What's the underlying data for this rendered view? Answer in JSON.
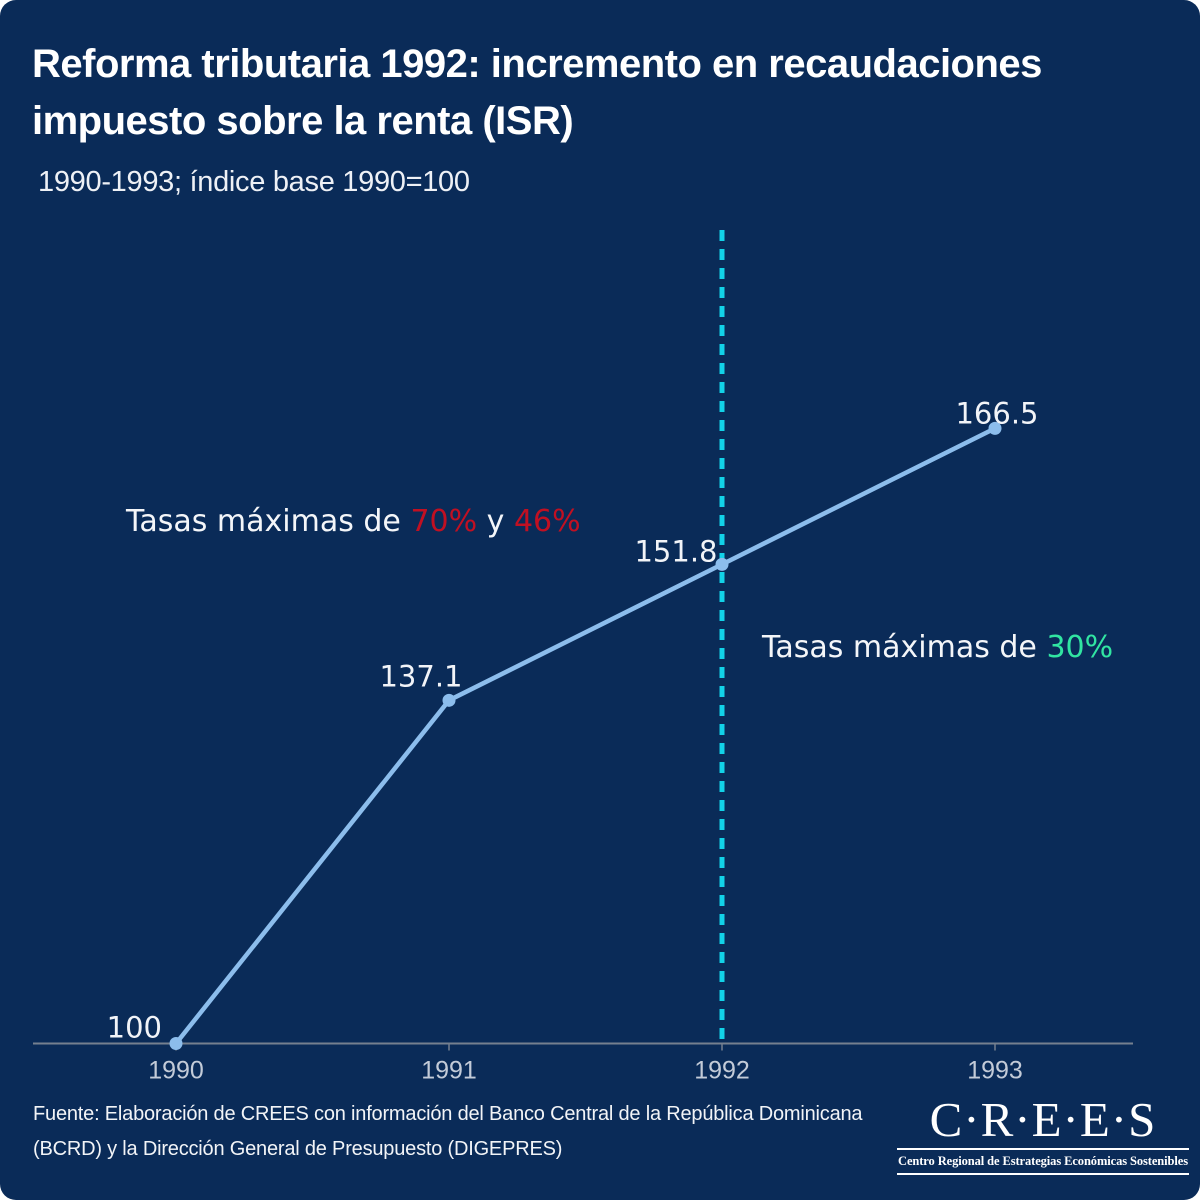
{
  "title": {
    "line1": "Reforma tributaria 1992: incremento en recaudaciones",
    "line2": "impuesto sobre la renta (ISR)"
  },
  "subtitle": "1990-1993; índice base 1990=100",
  "chart_data": {
    "type": "line",
    "x": [
      1990,
      1991,
      1992,
      1993
    ],
    "values": [
      100,
      137.1,
      151.8,
      166.5
    ],
    "point_labels": [
      "100",
      "137.1",
      "151.8",
      "166.5"
    ],
    "x_tick_labels": [
      "1990",
      "1991",
      "1992",
      "1993"
    ],
    "title": "Reforma tributaria 1992: incremento en recaudaciones impuesto sobre la renta (ISR)",
    "subtitle": "1990-1993; índice base 1990=100",
    "xlabel": "",
    "ylabel": "",
    "ylim": [
      95,
      175
    ],
    "grid": false,
    "legend": false,
    "reference_line": {
      "x": 1992,
      "style": "dashed",
      "orientation": "vertical"
    },
    "annotations": [
      {
        "side": "left-of-reference",
        "parts": [
          {
            "text": "Tasas máximas de ",
            "color": "#f4f6f9"
          },
          {
            "text": "70%",
            "color": "#c11022"
          },
          {
            "text": " y ",
            "color": "#f4f6f9"
          },
          {
            "text": "46%",
            "color": "#c11022"
          }
        ]
      },
      {
        "side": "right-of-reference",
        "parts": [
          {
            "text": "Tasas máximas de ",
            "color": "#f4f6f9"
          },
          {
            "text": "30%",
            "color": "#31e5a2"
          }
        ]
      }
    ]
  },
  "footer": {
    "source_line1": "Fuente: Elaboración de CREES con información del Banco Central de la República Dominicana",
    "source_line2": "(BCRD) y la Dirección General de Presupuesto (DIGEPRES)"
  },
  "logo": {
    "name": "C·R·E·E·S",
    "tagline": "Centro Regional de Estrategias Económicas Sostenibles"
  },
  "colors": {
    "background": "#0a2b58",
    "line": "#8cbdec",
    "point": "#8cbdec",
    "reference_dash": "#12d2e8",
    "axis": "#75808f",
    "tick_label": "#c3cbd8",
    "value_label": "#f2f4f8",
    "red_accent": "#c11022",
    "green_accent": "#31e5a2",
    "text": "#ffffff"
  }
}
